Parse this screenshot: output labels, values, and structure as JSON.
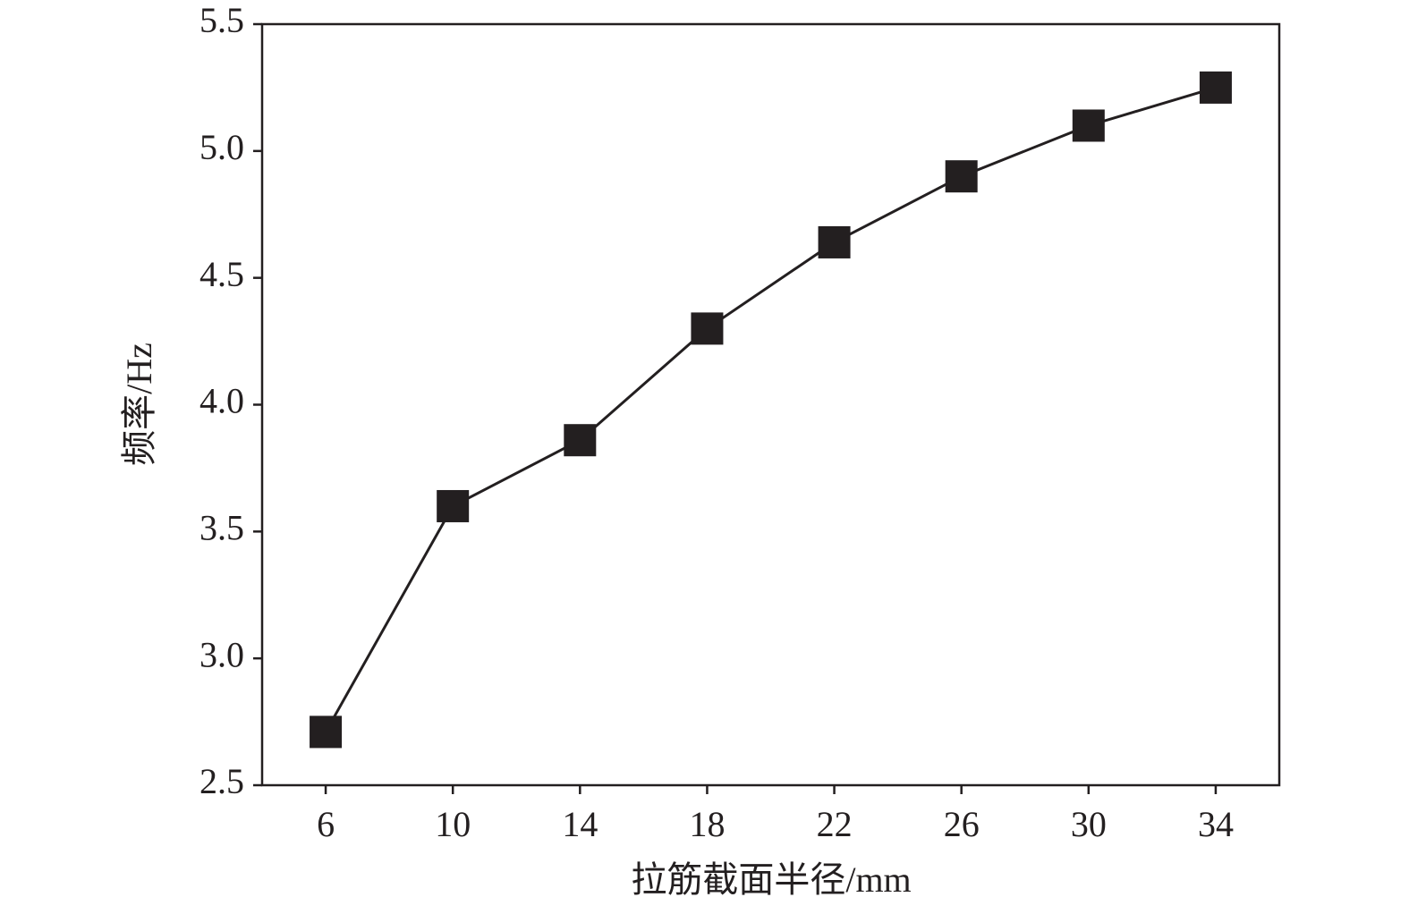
{
  "chart_data": {
    "type": "line",
    "x_label": "拉筋截面半径/mm",
    "y_label": "频率/Hz",
    "x": [
      6,
      10,
      14,
      18,
      22,
      26,
      30,
      34
    ],
    "series": [
      {
        "color": "#231f20",
        "marker": "square",
        "values": [
          2.71,
          3.6,
          3.86,
          4.3,
          4.64,
          4.9,
          5.1,
          5.25
        ]
      }
    ],
    "xlim": [
      4,
      36
    ],
    "xticks": [
      6,
      10,
      14,
      18,
      22,
      26,
      30,
      34
    ],
    "ylim": [
      2.5,
      5.5
    ],
    "yticks": [
      2.5,
      {
        "value": 3,
        "label": "3.0"
      },
      3.5,
      {
        "value": 4,
        "label": "4.0"
      },
      4.5,
      {
        "value": 5,
        "label": "5.0"
      },
      5.5
    ],
    "grid": false
  }
}
